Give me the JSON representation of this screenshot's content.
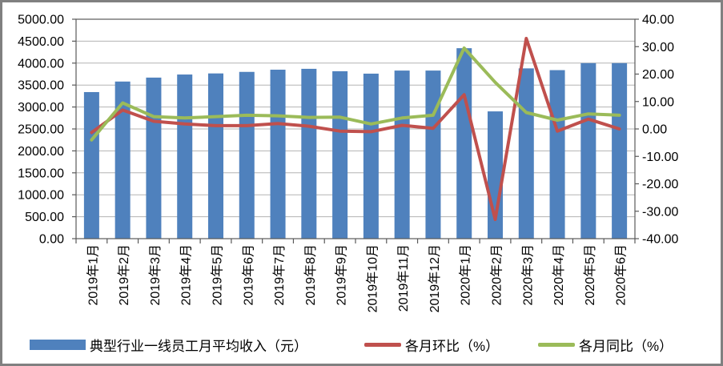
{
  "frame": {
    "background": "#ffffff",
    "border_color": "#808080"
  },
  "chart_data": {
    "type": "bar",
    "subtype": "bar-line-combo",
    "title": "",
    "xlabel": "",
    "ylabel": "",
    "grid": true,
    "legend_position": "bottom",
    "gridline_color": "#b3b3b3",
    "axis_color": "#595959",
    "text_color": "#000000",
    "categories": [
      "2019年1月",
      "2019年2月",
      "2019年3月",
      "2019年4月",
      "2019年5月",
      "2019年6月",
      "2019年7月",
      "2019年8月",
      "2019年9月",
      "2019年10月",
      "2019年11月",
      "2019年12月",
      "2020年1月",
      "2020年2月",
      "2020年3月",
      "2020年4月",
      "2020年5月",
      "2020年6月"
    ],
    "series": [
      {
        "name": "典型行业一线员工月平均收入（元）",
        "type": "bar",
        "axis": "left",
        "color": "#4f81bd",
        "values": [
          3340,
          3580,
          3670,
          3740,
          3765,
          3800,
          3850,
          3870,
          3815,
          3760,
          3830,
          3830,
          4340,
          2900,
          3880,
          3840,
          4000,
          4000
        ]
      },
      {
        "name": "各月环比（%）",
        "type": "line",
        "axis": "right",
        "color": "#c0504d",
        "values": [
          -1.3,
          6.9,
          2.8,
          1.8,
          1.2,
          1.2,
          2.0,
          1.0,
          -0.8,
          -1.0,
          1.3,
          0.2,
          12.5,
          -33.0,
          33.0,
          -0.8,
          3.6,
          0.0
        ]
      },
      {
        "name": "各月同比（%）",
        "type": "line",
        "axis": "right",
        "color": "#9bbb59",
        "values": [
          -4.0,
          9.5,
          4.5,
          4.0,
          4.5,
          5.0,
          4.8,
          4.2,
          4.3,
          1.8,
          4.0,
          5.0,
          29.5,
          17.0,
          6.0,
          3.2,
          5.5,
          5.0
        ]
      }
    ],
    "left_axis": {
      "min": 0,
      "max": 5000,
      "step": 500,
      "tick_labels": [
        "5000.00",
        "4500.00",
        "4000.00",
        "3500.00",
        "3000.00",
        "2500.00",
        "2000.00",
        "1500.00",
        "1000.00",
        "500.00",
        "0.00"
      ]
    },
    "right_axis": {
      "min": -40,
      "max": 40,
      "step": 10,
      "tick_labels": [
        "40.00",
        "30.00",
        "20.00",
        "10.00",
        "0.00",
        "-10.00",
        "-20.00",
        "-30.00",
        "-40.00"
      ]
    }
  }
}
